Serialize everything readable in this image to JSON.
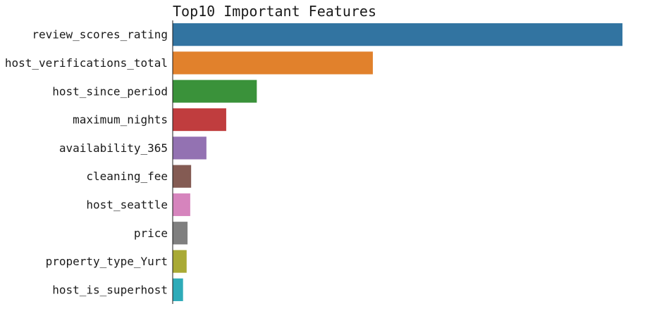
{
  "chart_data": {
    "type": "bar",
    "orientation": "horizontal",
    "title": "Top10 Important Features",
    "xlabel": "",
    "ylabel": "",
    "xlim": [
      0,
      1.05
    ],
    "grid": false,
    "legend": "none",
    "categories": [
      "review_scores_rating",
      "host_verifications_total",
      "host_since_period",
      "maximum_nights",
      "availability_365",
      "cleaning_fee",
      "host_seattle",
      "price",
      "property_type_Yurt",
      "host_is_superhost"
    ],
    "values": [
      1.0,
      0.445,
      0.187,
      0.119,
      0.075,
      0.041,
      0.039,
      0.033,
      0.031,
      0.023
    ],
    "colors": [
      "#3274a1",
      "#e1812c",
      "#3a923a",
      "#c03d3e",
      "#9372b2",
      "#845b53",
      "#d684bd",
      "#7f7f7f",
      "#a9aa35",
      "#2eabb8"
    ]
  }
}
